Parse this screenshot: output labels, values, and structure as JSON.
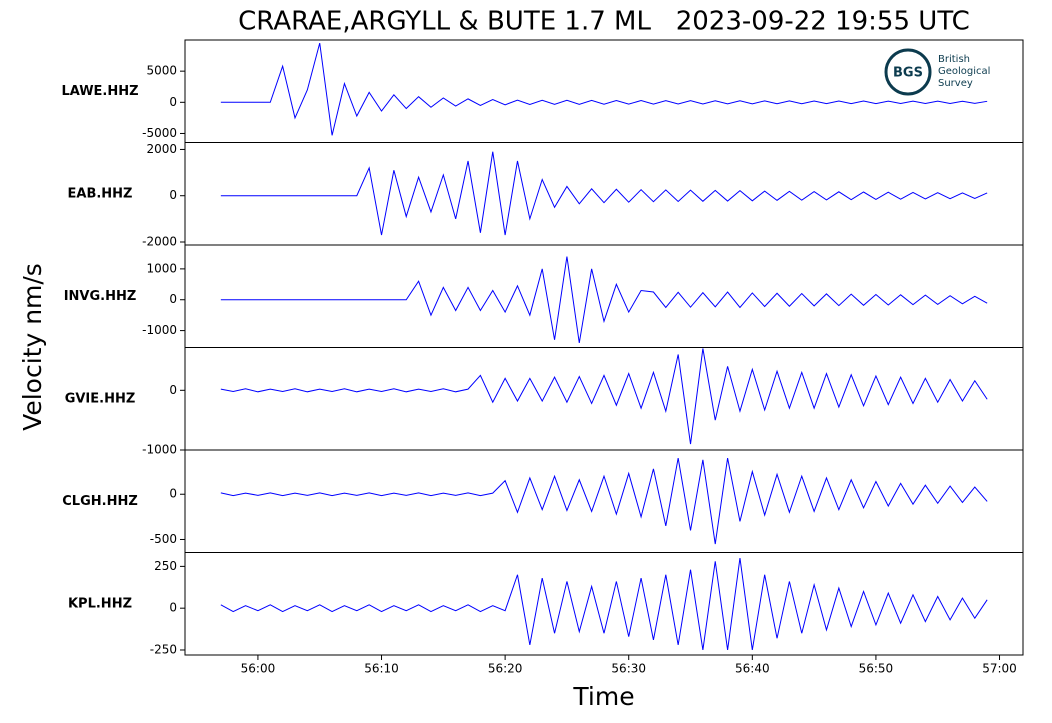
{
  "chart_data": {
    "type": "line",
    "title": "CRARAE,ARGYLL & BUTE 1.7 ML   2023-09-22 19:55 UTC",
    "xlabel": "Time",
    "ylabel": "Velocity nm/s",
    "xlim": [
      54.1,
      121.9
    ],
    "xticks": [
      {
        "value": 60,
        "label": "56:00"
      },
      {
        "value": 70,
        "label": "56:10"
      },
      {
        "value": 80,
        "label": "56:20"
      },
      {
        "value": 90,
        "label": "56:30"
      },
      {
        "value": 100,
        "label": "56:40"
      },
      {
        "value": 110,
        "label": "56:50"
      },
      {
        "value": 120,
        "label": "57:00"
      }
    ],
    "x": [
      57,
      58,
      59,
      60,
      61,
      62,
      63,
      64,
      65,
      66,
      67,
      68,
      69,
      70,
      71,
      72,
      73,
      74,
      75,
      76,
      77,
      78,
      79,
      80,
      81,
      82,
      83,
      84,
      85,
      86,
      87,
      88,
      89,
      90,
      91,
      92,
      93,
      94,
      95,
      96,
      97,
      98,
      99,
      100,
      101,
      102,
      103,
      104,
      105,
      106,
      107,
      108,
      109,
      110,
      111,
      112,
      113,
      114,
      115,
      116,
      117,
      118,
      119
    ],
    "panels": [
      {
        "name": "LAWE.HHZ",
        "color": "#0000ff",
        "ylim": [
          -6450,
          10000
        ],
        "yticks": [
          -5000,
          0,
          5000
        ],
        "values": [
          0,
          0,
          0,
          0,
          0,
          5800,
          -2500,
          2000,
          9500,
          -5300,
          3000,
          -2200,
          1600,
          -1400,
          1200,
          -1000,
          900,
          -800,
          700,
          -600,
          550,
          -500,
          450,
          -400,
          350,
          -350,
          330,
          -330,
          320,
          -320,
          300,
          -300,
          290,
          -290,
          280,
          -280,
          270,
          -270,
          260,
          -260,
          250,
          -250,
          240,
          -240,
          230,
          -230,
          220,
          -220,
          210,
          -210,
          200,
          -200,
          200,
          -200,
          190,
          -190,
          180,
          -180,
          180,
          -180,
          170,
          -170,
          160
        ]
      },
      {
        "name": "EAB.HHZ",
        "color": "#0000ff",
        "ylim": [
          -2130,
          2300
        ],
        "yticks": [
          -2000,
          0,
          2000
        ],
        "values": [
          0,
          0,
          0,
          0,
          0,
          0,
          0,
          0,
          0,
          0,
          0,
          0,
          1200,
          -1700,
          1100,
          -900,
          800,
          -700,
          900,
          -1000,
          1500,
          -1600,
          1900,
          -1700,
          1500,
          -1000,
          700,
          -500,
          400,
          -350,
          300,
          -300,
          280,
          -280,
          260,
          -260,
          250,
          -250,
          240,
          -240,
          230,
          -230,
          220,
          -220,
          200,
          -200,
          190,
          -190,
          180,
          -180,
          170,
          -170,
          160,
          -160,
          150,
          -150,
          140,
          -140,
          130,
          -130,
          120,
          -120,
          120
        ]
      },
      {
        "name": "INVG.HHZ",
        "color": "#0000ff",
        "ylim": [
          -1548,
          1774
        ],
        "yticks": [
          -1000,
          0,
          1000
        ],
        "values": [
          0,
          0,
          0,
          0,
          0,
          0,
          0,
          0,
          0,
          0,
          0,
          0,
          0,
          0,
          0,
          0,
          600,
          -500,
          400,
          -350,
          400,
          -350,
          300,
          -400,
          450,
          -500,
          1000,
          -1300,
          1400,
          -1400,
          1000,
          -700,
          500,
          -400,
          300,
          250,
          -250,
          240,
          -240,
          230,
          -230,
          250,
          -250,
          220,
          -220,
          210,
          -210,
          200,
          -200,
          190,
          -190,
          180,
          -180,
          170,
          -170,
          160,
          -160,
          150,
          -150,
          130,
          -130,
          110,
          -110
        ]
      },
      {
        "name": "GVIE.HHZ",
        "color": "#0000ff",
        "ylim": [
          -1000,
          717
        ],
        "yticks": [
          -1000,
          0
        ],
        "values": [
          20,
          -20,
          25,
          -25,
          20,
          -20,
          25,
          -25,
          20,
          -20,
          25,
          -25,
          20,
          -20,
          25,
          -25,
          20,
          -20,
          25,
          -25,
          20,
          250,
          -200,
          200,
          -180,
          200,
          -180,
          220,
          -200,
          230,
          -220,
          250,
          -250,
          280,
          -300,
          300,
          -350,
          600,
          -900,
          700,
          -500,
          400,
          -350,
          350,
          -330,
          320,
          -300,
          300,
          -300,
          280,
          -280,
          260,
          -260,
          240,
          -240,
          220,
          -220,
          200,
          -200,
          180,
          -180,
          160,
          -150
        ]
      },
      {
        "name": "CLGH.HHZ",
        "color": "#0000ff",
        "ylim": [
          -644,
          489
        ],
        "yticks": [
          -500,
          0
        ],
        "values": [
          15,
          -15,
          12,
          -12,
          15,
          -15,
          12,
          -12,
          15,
          -15,
          12,
          -12,
          15,
          -15,
          12,
          -12,
          15,
          -15,
          12,
          -12,
          15,
          -15,
          12,
          150,
          -200,
          180,
          -170,
          200,
          -180,
          160,
          -190,
          200,
          -220,
          230,
          -250,
          280,
          -350,
          400,
          -400,
          380,
          -550,
          400,
          -300,
          250,
          -230,
          220,
          -200,
          200,
          -190,
          180,
          -170,
          160,
          -150,
          140,
          -130,
          120,
          -110,
          100,
          -100,
          90,
          -90,
          80,
          -80
        ]
      },
      {
        "name": "KPL.HHZ",
        "color": "#0000ff",
        "ylim": [
          -280,
          333
        ],
        "yticks": [
          -250,
          0,
          250
        ],
        "values": [
          20,
          -20,
          15,
          -15,
          20,
          -20,
          15,
          -15,
          20,
          -20,
          15,
          -15,
          20,
          -20,
          15,
          -15,
          20,
          -20,
          15,
          -15,
          20,
          -20,
          15,
          -15,
          200,
          -220,
          180,
          -150,
          160,
          -140,
          130,
          -150,
          160,
          -170,
          180,
          -190,
          200,
          -220,
          230,
          -250,
          280,
          -250,
          300,
          -250,
          200,
          -180,
          160,
          -150,
          140,
          -130,
          120,
          -110,
          100,
          -100,
          90,
          -90,
          80,
          -80,
          70,
          -70,
          60,
          -60,
          50
        ]
      }
    ]
  },
  "logo": {
    "abbr": "BGS",
    "lines": [
      "British",
      "Geological",
      "Survey"
    ]
  }
}
